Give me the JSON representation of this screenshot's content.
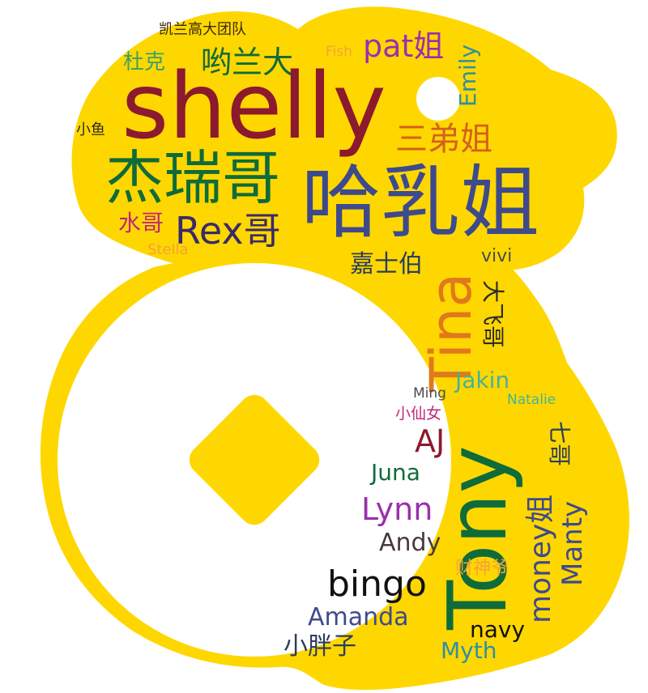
{
  "shape": {
    "fill": "#FFD700",
    "background": "#FFFFFF",
    "description_icon": "coin-mascot-shape"
  },
  "words": [
    {
      "key": "w01",
      "text": "凯兰高大团队",
      "color": "#3a2a10"
    },
    {
      "key": "w02",
      "text": "杜克",
      "color": "#3aa06c"
    },
    {
      "key": "w03",
      "text": "哟兰大",
      "color": "#0f6b3a"
    },
    {
      "key": "w04",
      "text": "Fish",
      "color": "#f3a23a"
    },
    {
      "key": "w05",
      "text": "pat姐",
      "color": "#9b2fae"
    },
    {
      "key": "w06",
      "text": "Emily",
      "color": "#2e8fa3"
    },
    {
      "key": "w07",
      "text": "shelly",
      "color": "#8b1a2e"
    },
    {
      "key": "w08",
      "text": "小鱼",
      "color": "#2a2a2a"
    },
    {
      "key": "w09",
      "text": "三弟姐",
      "color": "#d4601c"
    },
    {
      "key": "w10",
      "text": "杰瑞哥",
      "color": "#0f6b3a"
    },
    {
      "key": "w11",
      "text": "哈乳姐",
      "color": "#3d4a8c"
    },
    {
      "key": "w12",
      "text": "水哥",
      "color": "#c0267a"
    },
    {
      "key": "w13",
      "text": "Rex哥",
      "color": "#3b2a6a"
    },
    {
      "key": "w14",
      "text": "Stella",
      "color": "#f3a23a"
    },
    {
      "key": "w15",
      "text": "嘉士伯",
      "color": "#2b3d5c"
    },
    {
      "key": "w16",
      "text": "Tina",
      "color": "#e0791c"
    },
    {
      "key": "w17",
      "text": "vivi",
      "color": "#4b4b4b"
    },
    {
      "key": "w18",
      "text": "大飞哥",
      "color": "#2a2a2a"
    },
    {
      "key": "w19",
      "text": "Jakin",
      "color": "#42b49a"
    },
    {
      "key": "w20",
      "text": "Ming",
      "color": "#4b4b4b"
    },
    {
      "key": "w21",
      "text": "Natalie",
      "color": "#42b49a"
    },
    {
      "key": "w22",
      "text": "小仙女",
      "color": "#c0267a"
    },
    {
      "key": "w23",
      "text": "Tony",
      "color": "#0f6b3a"
    },
    {
      "key": "w24",
      "text": "AJ",
      "color": "#8b1a2e"
    },
    {
      "key": "w25",
      "text": "七哥",
      "color": "#2b3d5c"
    },
    {
      "key": "w26",
      "text": "Juna",
      "color": "#0f6b3a"
    },
    {
      "key": "w27",
      "text": "money姐",
      "color": "#3d4a8c"
    },
    {
      "key": "w28",
      "text": "Manty",
      "color": "#3d4a8c"
    },
    {
      "key": "w29",
      "text": "Lynn",
      "color": "#9b2fae"
    },
    {
      "key": "w30",
      "text": "Andy",
      "color": "#4b3a3a"
    },
    {
      "key": "w31",
      "text": "财神爷",
      "color": "#f3a23a"
    },
    {
      "key": "w32",
      "text": "bingo",
      "color": "#111111"
    },
    {
      "key": "w33",
      "text": "Amanda",
      "color": "#3d4a8c"
    },
    {
      "key": "w34",
      "text": "小胖子",
      "color": "#2b3d5c"
    },
    {
      "key": "w35",
      "text": "navy",
      "color": "#111111"
    },
    {
      "key": "w36",
      "text": "Myth",
      "color": "#2e8fa3"
    }
  ]
}
